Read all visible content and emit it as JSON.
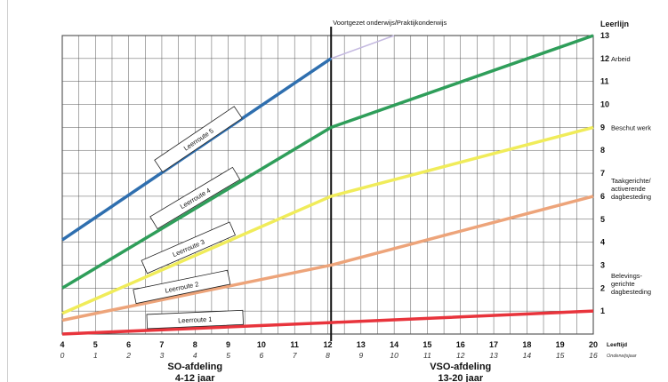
{
  "chart_data": {
    "type": "line",
    "title": "Voortgezet onderwijs/Praktijkonderwijs",
    "ylabel": "Leerlijn",
    "xlabel": "Leeftijd",
    "xlabel2": "Onderwijsjaar",
    "xlim": [
      4,
      20
    ],
    "ylim": [
      0,
      13
    ],
    "x_ticks": [
      4,
      5,
      6,
      7,
      8,
      9,
      10,
      11,
      12,
      13,
      14,
      15,
      16,
      17,
      18,
      19,
      20
    ],
    "x_ticks2": [
      "0",
      "1",
      "2",
      "3",
      "4",
      "5",
      "6",
      "7",
      "8",
      "9",
      "10",
      "11",
      "12",
      "13",
      "14",
      "15",
      "16"
    ],
    "y_ticks": [
      1,
      2,
      3,
      4,
      5,
      6,
      7,
      8,
      9,
      10,
      11,
      12,
      13
    ],
    "divider_x": 12.1,
    "sections": [
      {
        "line1": "SO-afdeling",
        "line2": "4-12 jaar",
        "x": 8
      },
      {
        "line1": "VSO-afdeling",
        "line2": "13-20 jaar",
        "x": 16
      }
    ],
    "y_annotations": [
      {
        "y": 12,
        "text": [
          "Arbeid"
        ]
      },
      {
        "y": 9,
        "text": [
          "Beschut werk"
        ]
      },
      {
        "y": 6,
        "text": [
          "Taakgerichte/",
          "activerende",
          "dagbesteding"
        ]
      },
      {
        "y": 1,
        "text": [
          "Belevings-",
          "gerichte",
          "dagbesteding"
        ]
      }
    ],
    "series": [
      {
        "name": "Leerroute 1",
        "color": "#e8343c",
        "x": [
          4,
          12.1,
          20
        ],
        "y": [
          0.0,
          0.5,
          1.0
        ]
      },
      {
        "name": "Leerroute 2",
        "color": "#eda47a",
        "x": [
          4,
          12.1,
          20
        ],
        "y": [
          0.6,
          3.0,
          6.0
        ]
      },
      {
        "name": "Leerroute 3",
        "color": "#f0ec5a",
        "x": [
          4,
          12.1,
          20
        ],
        "y": [
          0.9,
          6.0,
          9.0
        ]
      },
      {
        "name": "Leerroute 4",
        "color": "#2f9e5a",
        "x": [
          4,
          12.1,
          20
        ],
        "y": [
          2.0,
          9.0,
          13.0
        ]
      },
      {
        "name": "Leerroute 5",
        "color": "#2f6faf",
        "x": [
          4,
          12.1
        ],
        "y": [
          4.1,
          12.0
        ]
      }
    ],
    "extension": {
      "color": "#c4b9e0",
      "x": [
        12.1,
        14.0
      ],
      "y": [
        12.0,
        13.0
      ]
    }
  }
}
